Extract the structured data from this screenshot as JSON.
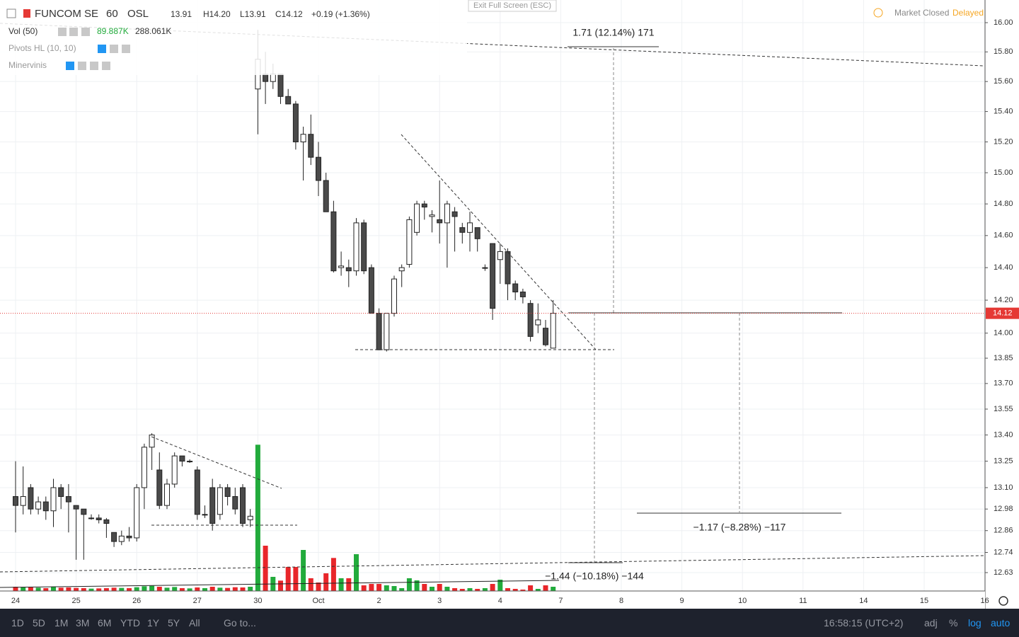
{
  "ui": {
    "symbol": "FUNCOM SE",
    "interval": "60",
    "exchange": "OSL",
    "open": "13.91",
    "high": "H14.20",
    "low": "L13.91",
    "close": "C14.12",
    "change": "+0.19 (+1.36%)",
    "indicators": [
      "Vol (50)",
      "Pivots HL (10, 10)",
      "Minervinis"
    ],
    "vol_values": [
      "89.887K",
      "288.061K"
    ],
    "exit": "Exit Full Screen (ESC)",
    "market": "Market Closed",
    "delayed": "Delayed",
    "last_price_label": "14.12",
    "annotations": [
      "1.71 (12.14%) 171",
      "−1.17 (−8.28%) −117",
      "−1.44 (−10.18%) −144"
    ],
    "ranges": [
      "1D",
      "5D",
      "1M",
      "3M",
      "6M",
      "YTD",
      "1Y",
      "5Y",
      "All"
    ],
    "goto": "Go to...",
    "clock": "16:58:15 (UTC+2)",
    "toggles": [
      "adj",
      "%",
      "log",
      "auto"
    ]
  },
  "chart_data": {
    "type": "candlestick",
    "log_scale": true,
    "categories": [
      "24",
      "25",
      "26",
      "27",
      "30",
      "Oct",
      "2",
      "3",
      "4",
      "7",
      "8",
      "9",
      "10",
      "11",
      "14",
      "15",
      "16"
    ],
    "candles_per_category": 8,
    "open": [
      13.05,
      13.0,
      13.1,
      12.98,
      13.02,
      12.97,
      13.1,
      13.05,
      13.0,
      12.98,
      12.93,
      12.93,
      12.92,
      12.85,
      12.8,
      12.83,
      12.82,
      13.1,
      13.33,
      13.2,
      13.0,
      13.12,
      13.28,
      13.25,
      13.2,
      12.95,
      13.1,
      12.95,
      13.1,
      13.05,
      13.1,
      12.92,
      15.55,
      15.65,
      15.6,
      15.65,
      15.5,
      15.45,
      15.2,
      15.25,
      15.1,
      14.95,
      14.75,
      14.4,
      14.4,
      14.38,
      14.68,
      14.4,
      14.12,
      13.9,
      14.12,
      14.38,
      14.42,
      14.62,
      14.8,
      14.72,
      14.7,
      14.68,
      14.75,
      14.65,
      14.62,
      14.65,
      14.4,
      14.55,
      14.45,
      14.5,
      14.3,
      14.25,
      14.18,
      14.05,
      14.03,
      13.91
    ],
    "high": [
      13.25,
      13.22,
      13.12,
      13.05,
      13.05,
      13.15,
      13.12,
      13.12,
      13.0,
      12.98,
      12.95,
      12.95,
      12.93,
      12.85,
      12.86,
      12.88,
      13.12,
      13.35,
      13.41,
      13.3,
      13.15,
      13.3,
      13.28,
      13.26,
      13.22,
      13.0,
      13.15,
      13.12,
      13.12,
      13.1,
      13.12,
      12.98,
      15.95,
      15.8,
      15.72,
      15.65,
      15.55,
      15.47,
      15.3,
      15.38,
      15.2,
      15.0,
      14.82,
      14.5,
      14.45,
      14.71,
      14.7,
      14.42,
      14.15,
      14.12,
      14.35,
      14.42,
      14.72,
      14.82,
      14.82,
      14.76,
      14.95,
      14.82,
      14.78,
      14.68,
      14.75,
      14.65,
      14.42,
      14.55,
      14.55,
      14.52,
      14.32,
      14.27,
      14.2,
      14.18,
      14.08,
      14.2
    ],
    "low": [
      12.85,
      12.95,
      12.95,
      12.95,
      12.92,
      12.88,
      12.98,
      12.85,
      12.7,
      12.7,
      12.92,
      12.9,
      12.82,
      12.77,
      12.78,
      12.8,
      12.8,
      12.98,
      13.2,
      12.98,
      12.98,
      13.1,
      13.22,
      13.24,
      12.92,
      12.93,
      12.86,
      12.92,
      13.0,
      12.95,
      12.88,
      12.88,
      15.25,
      15.45,
      15.55,
      15.45,
      15.45,
      15.15,
      14.95,
      15.05,
      14.85,
      14.75,
      14.37,
      14.35,
      14.28,
      14.35,
      14.36,
      14.12,
      13.9,
      13.89,
      14.1,
      14.28,
      14.4,
      14.6,
      14.7,
      14.62,
      14.55,
      14.4,
      14.5,
      14.55,
      14.5,
      14.5,
      14.38,
      14.08,
      14.3,
      14.2,
      14.2,
      14.18,
      13.95,
      14.0,
      13.92,
      13.91
    ],
    "close": [
      13.0,
      13.05,
      12.98,
      13.02,
      12.97,
      13.1,
      13.05,
      13.02,
      12.98,
      12.95,
      12.93,
      12.92,
      12.9,
      12.8,
      12.83,
      12.82,
      13.1,
      13.33,
      13.4,
      13.0,
      13.12,
      13.28,
      13.25,
      13.25,
      12.95,
      12.95,
      12.9,
      13.1,
      13.05,
      12.98,
      12.9,
      12.94,
      15.75,
      15.6,
      15.65,
      15.5,
      15.45,
      15.2,
      15.25,
      15.1,
      14.95,
      14.75,
      14.38,
      14.41,
      14.38,
      14.68,
      14.38,
      14.12,
      13.9,
      14.12,
      14.33,
      14.4,
      14.7,
      14.8,
      14.78,
      14.73,
      14.68,
      14.8,
      14.72,
      14.62,
      14.68,
      14.58,
      14.4,
      14.15,
      14.5,
      14.3,
      14.25,
      14.22,
      13.98,
      14.08,
      13.93,
      14.12
    ],
    "volume": [
      90,
      75,
      80,
      70,
      60,
      85,
      70,
      75,
      65,
      60,
      50,
      55,
      60,
      70,
      65,
      60,
      80,
      100,
      110,
      90,
      70,
      85,
      60,
      55,
      75,
      60,
      90,
      70,
      65,
      80,
      75,
      90,
      3100,
      960,
      300,
      220,
      510,
      510,
      870,
      270,
      180,
      375,
      700,
      270,
      270,
      780,
      120,
      150,
      150,
      120,
      105,
      60,
      270,
      225,
      150,
      90,
      150,
      90,
      60,
      45,
      60,
      45,
      60,
      150,
      240,
      60,
      45,
      30,
      120,
      45,
      120,
      90
    ],
    "vlim": [
      0,
      3300
    ],
    "up_color": "#ffffff",
    "down_color": "#4a4a4a",
    "vol_up_color": "#22ab3c",
    "vol_down_color": "#e8262a",
    "ylim": [
      12.63,
      16.0
    ],
    "yticks": [
      {
        "value": 16.0,
        "label": "16.00"
      },
      {
        "value": 15.8,
        "label": "15.80"
      },
      {
        "value": 15.6,
        "label": "15.60"
      },
      {
        "value": 15.4,
        "label": "15.40"
      },
      {
        "value": 15.2,
        "label": "15.20"
      },
      {
        "value": 15.0,
        "label": "15.00"
      },
      {
        "value": 14.8,
        "label": "14.80"
      },
      {
        "value": 14.6,
        "label": "14.60"
      },
      {
        "value": 14.4,
        "label": "14.40"
      },
      {
        "value": 14.2,
        "label": "14.20"
      },
      {
        "value": 14.0,
        "label": "14.00"
      },
      {
        "value": 13.85,
        "label": "13.85"
      },
      {
        "value": 13.7,
        "label": "13.70"
      },
      {
        "value": 13.55,
        "label": "13.55"
      },
      {
        "value": 13.4,
        "label": "13.40"
      },
      {
        "value": 13.25,
        "label": "13.25"
      },
      {
        "value": 13.1,
        "label": "13.10"
      },
      {
        "value": 12.98,
        "label": "12.98"
      },
      {
        "value": 12.86,
        "label": "12.86"
      },
      {
        "value": 12.74,
        "label": "12.74"
      },
      {
        "value": 12.63,
        "label": "12.63"
      }
    ],
    "grid": true,
    "last_price": 14.12
  }
}
